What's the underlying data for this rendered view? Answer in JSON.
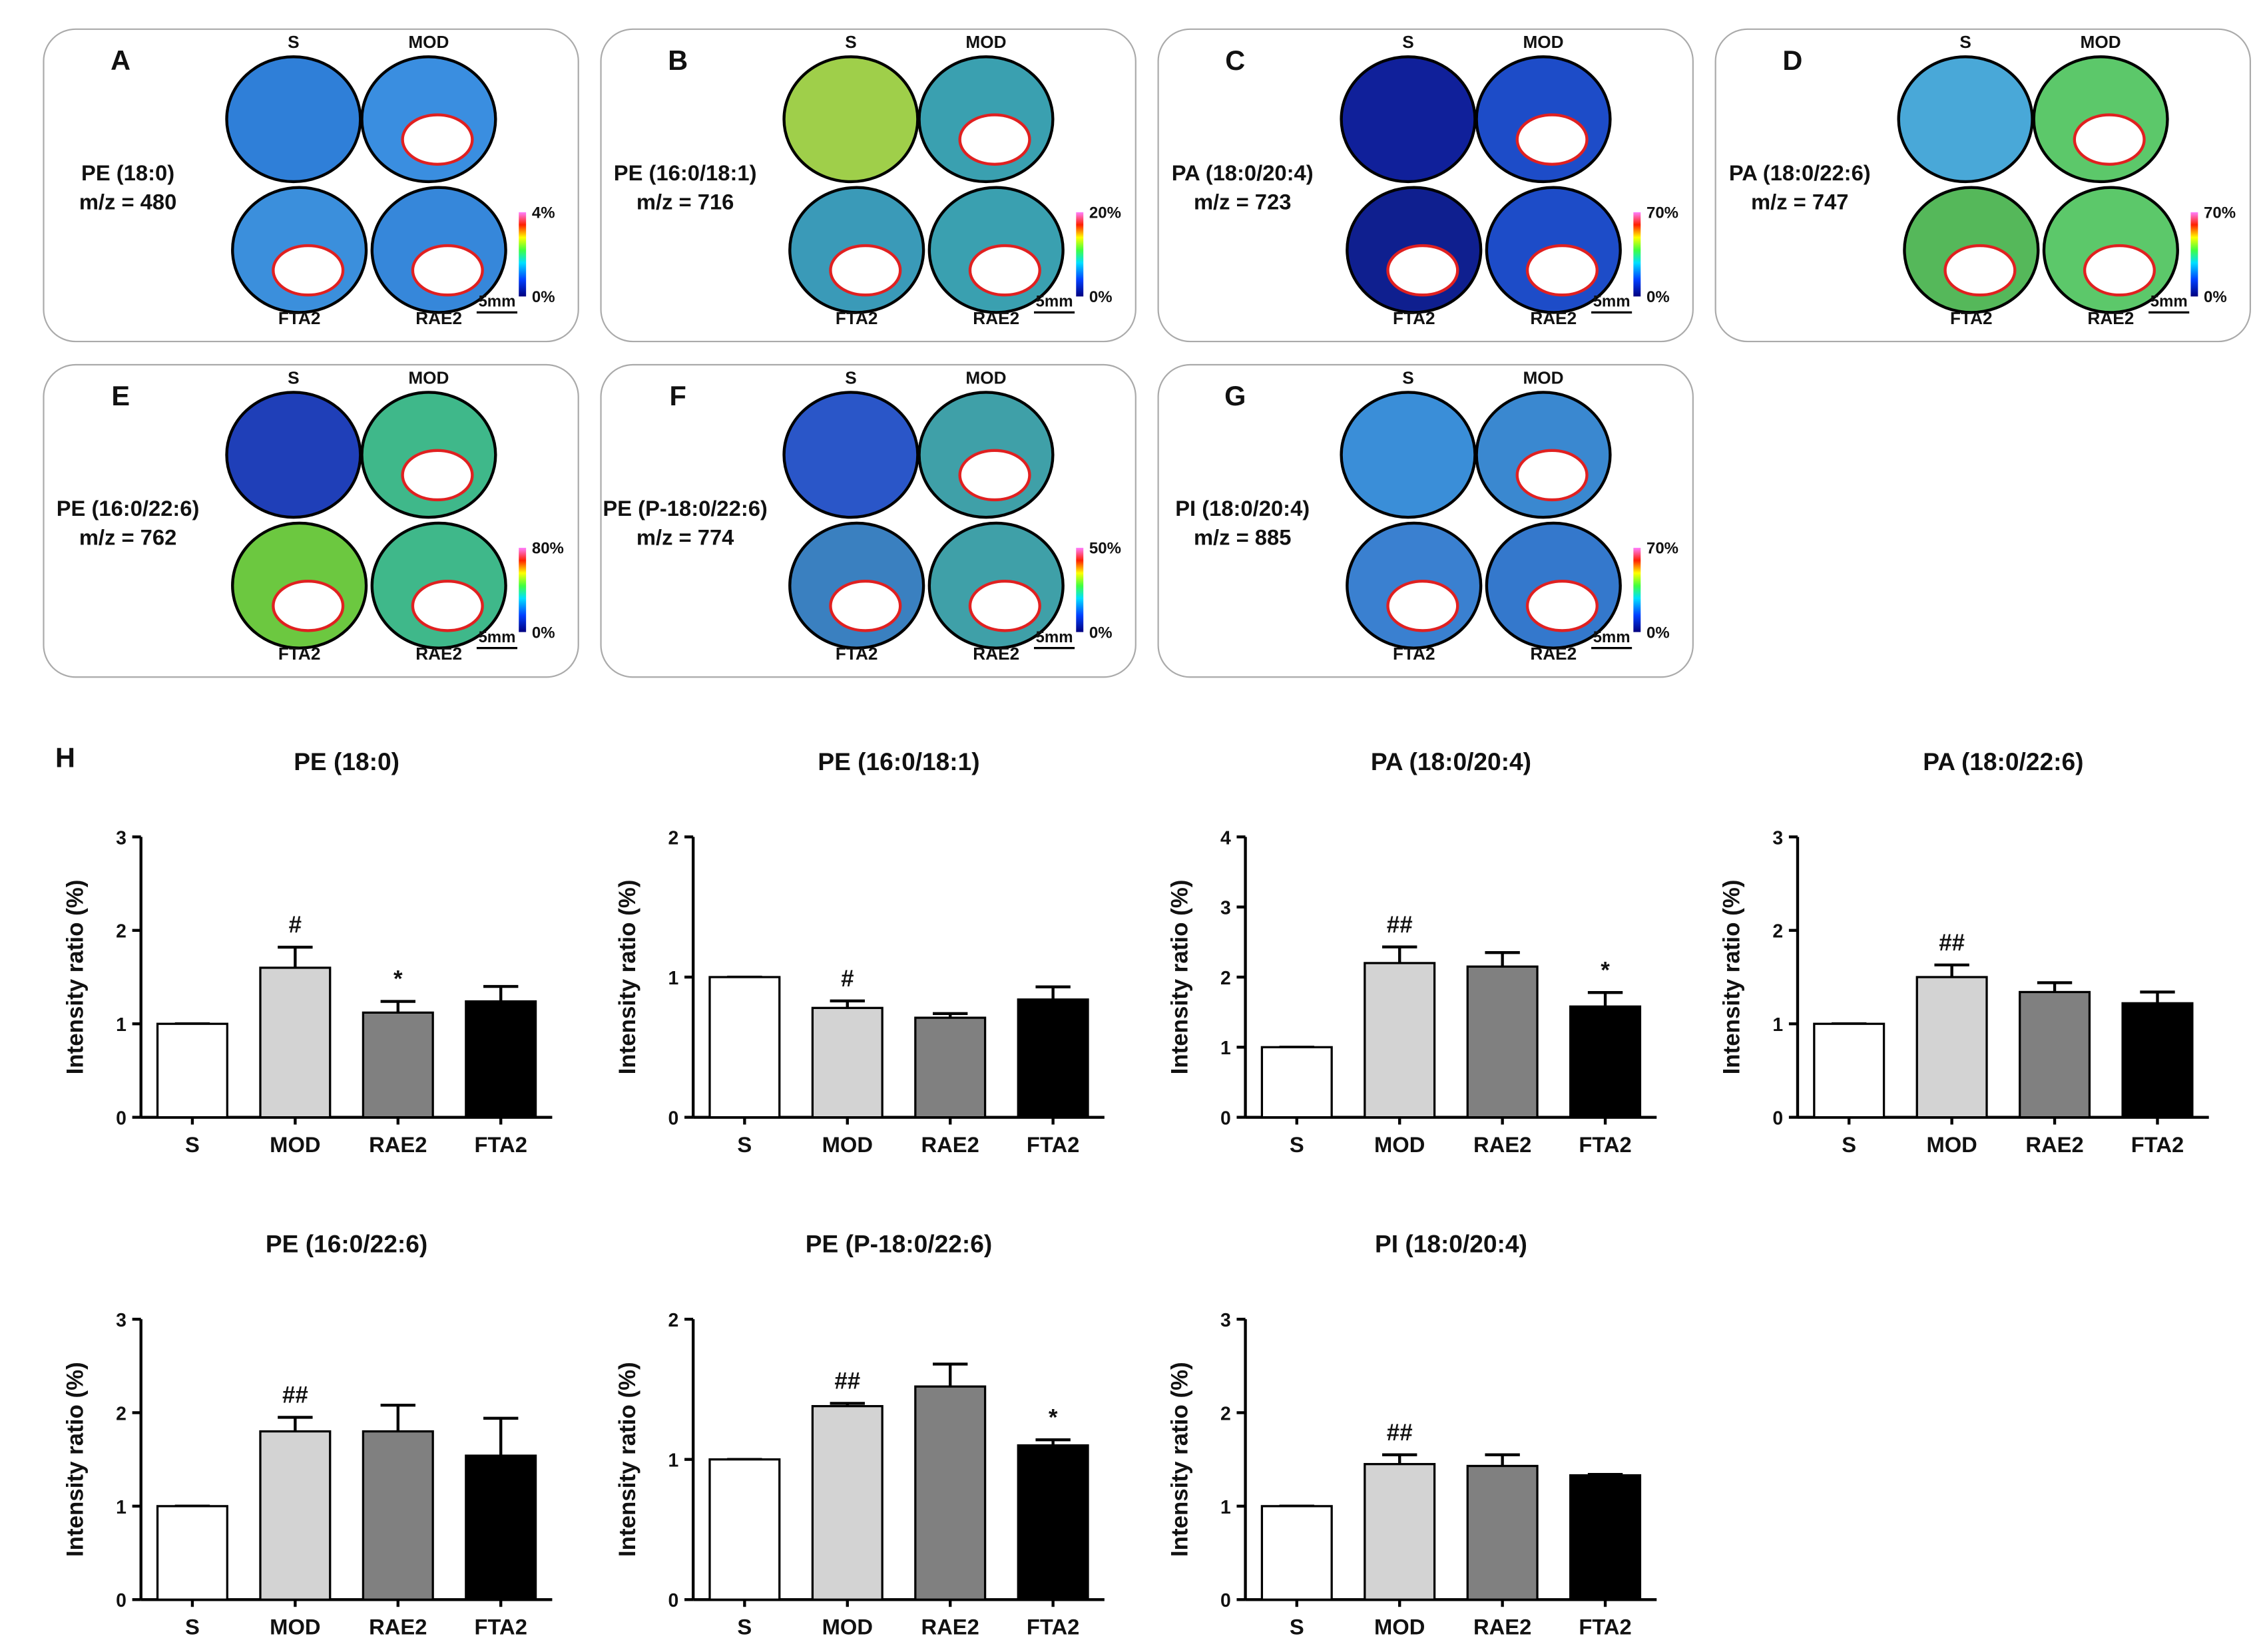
{
  "figure_label": "H",
  "image_panels": [
    {
      "letter": "A",
      "compound": "PE (18:0)",
      "mz": "m/z = 480",
      "labels": [
        "S",
        "MOD",
        "FTA2",
        "RAE2"
      ],
      "scale_max": "4%",
      "scale_min": "0%",
      "scale_bar": "5mm",
      "tissue_colors": [
        "#2f7fd8",
        "#3a8ee0",
        "#3b8fdc",
        "#3687da"
      ]
    },
    {
      "letter": "B",
      "compound": "PE (16:0/18:1)",
      "mz": "m/z = 716",
      "labels": [
        "S",
        "MOD",
        "FTA2",
        "RAE2"
      ],
      "scale_max": "20%",
      "scale_min": "0%",
      "scale_bar": "5mm",
      "tissue_colors": [
        "#9fcf4a",
        "#3aa0b0",
        "#3a9ab8",
        "#3aa0b0"
      ]
    },
    {
      "letter": "C",
      "compound": "PA (18:0/20:4)",
      "mz": "m/z = 723",
      "labels": [
        "S",
        "MOD",
        "FTA2",
        "RAE2"
      ],
      "scale_max": "70%",
      "scale_min": "0%",
      "scale_bar": "5mm",
      "tissue_colors": [
        "#10209a",
        "#1d4cc8",
        "#0f1f8f",
        "#1d4cc8"
      ]
    },
    {
      "letter": "D",
      "compound": "PA (18:0/22:6)",
      "mz": "m/z = 747",
      "labels": [
        "S",
        "MOD",
        "FTA2",
        "RAE2"
      ],
      "scale_max": "70%",
      "scale_min": "0%",
      "scale_bar": "5mm",
      "tissue_colors": [
        "#49a8d8",
        "#5cc86a",
        "#55b85a",
        "#5cc86a"
      ]
    },
    {
      "letter": "E",
      "compound": "PE (16:0/22:6)",
      "mz": "m/z = 762",
      "labels": [
        "S",
        "MOD",
        "FTA2",
        "RAE2"
      ],
      "scale_max": "80%",
      "scale_min": "0%",
      "scale_bar": "5mm",
      "tissue_colors": [
        "#1f3fb8",
        "#3fb88a",
        "#6cc840",
        "#3fb88a"
      ]
    },
    {
      "letter": "F",
      "compound": "PE (P-18:0/22:6)",
      "mz": "m/z = 774",
      "labels": [
        "S",
        "MOD",
        "FTA2",
        "RAE2"
      ],
      "scale_max": "50%",
      "scale_min": "0%",
      "scale_bar": "5mm",
      "tissue_colors": [
        "#2a56c8",
        "#3fa0a8",
        "#3a80c0",
        "#3fa0a8"
      ]
    },
    {
      "letter": "G",
      "compound": "PI (18:0/20:4)",
      "mz": "m/z = 885",
      "labels": [
        "S",
        "MOD",
        "FTA2",
        "RAE2"
      ],
      "scale_max": "70%",
      "scale_min": "0%",
      "scale_bar": "5mm",
      "tissue_colors": [
        "#3a8ed8",
        "#3a88d0",
        "#3a80d0",
        "#3478cc"
      ]
    }
  ],
  "chart_data": [
    {
      "type": "bar",
      "title": "PE (18:0)",
      "ylabel": "Intensity ratio (%)",
      "categories": [
        "S",
        "MOD",
        "RAE2",
        "FTA2"
      ],
      "values": [
        1,
        1.6,
        1.12,
        1.24
      ],
      "errors": [
        0,
        0.22,
        0.12,
        0.16
      ],
      "annotations": [
        null,
        "#",
        "*",
        null
      ],
      "colors": [
        "#ffffff",
        "#d3d3d3",
        "#808080",
        "#000000"
      ],
      "ylim": [
        0,
        3
      ],
      "yticks": [
        0,
        1,
        2,
        3
      ]
    },
    {
      "type": "bar",
      "title": "PE (16:0/18:1)",
      "ylabel": "Intensity ratio (%)",
      "categories": [
        "S",
        "MOD",
        "RAE2",
        "FTA2"
      ],
      "values": [
        1,
        0.78,
        0.71,
        0.84
      ],
      "errors": [
        0,
        0.05,
        0.03,
        0.09
      ],
      "annotations": [
        null,
        "#",
        null,
        null
      ],
      "colors": [
        "#ffffff",
        "#d3d3d3",
        "#808080",
        "#000000"
      ],
      "ylim": [
        0,
        2
      ],
      "yticks": [
        0,
        1,
        2
      ]
    },
    {
      "type": "bar",
      "title": "PA (18:0/20:4)",
      "ylabel": "Intensity ratio (%)",
      "categories": [
        "S",
        "MOD",
        "RAE2",
        "FTA2"
      ],
      "values": [
        1,
        2.2,
        2.15,
        1.58
      ],
      "errors": [
        0,
        0.23,
        0.2,
        0.2
      ],
      "annotations": [
        null,
        "##",
        null,
        "*"
      ],
      "colors": [
        "#ffffff",
        "#d3d3d3",
        "#808080",
        "#000000"
      ],
      "ylim": [
        0,
        4
      ],
      "yticks": [
        0,
        1,
        2,
        3,
        4
      ]
    },
    {
      "type": "bar",
      "title": "PA (18:0/22:6)",
      "ylabel": "Intensity ratio (%)",
      "categories": [
        "S",
        "MOD",
        "RAE2",
        "FTA2"
      ],
      "values": [
        1,
        1.5,
        1.34,
        1.22
      ],
      "errors": [
        0,
        0.13,
        0.1,
        0.12
      ],
      "annotations": [
        null,
        "##",
        null,
        null
      ],
      "colors": [
        "#ffffff",
        "#d3d3d3",
        "#808080",
        "#000000"
      ],
      "ylim": [
        0,
        3
      ],
      "yticks": [
        0,
        1,
        2,
        3
      ]
    },
    {
      "type": "bar",
      "title": "PE (16:0/22:6)",
      "ylabel": "Intensity ratio (%)",
      "categories": [
        "S",
        "MOD",
        "RAE2",
        "FTA2"
      ],
      "values": [
        1,
        1.8,
        1.8,
        1.54
      ],
      "errors": [
        0,
        0.15,
        0.28,
        0.4
      ],
      "annotations": [
        null,
        "##",
        null,
        null
      ],
      "colors": [
        "#ffffff",
        "#d3d3d3",
        "#808080",
        "#000000"
      ],
      "ylim": [
        0,
        3
      ],
      "yticks": [
        0,
        1,
        2,
        3
      ]
    },
    {
      "type": "bar",
      "title": "PE (P-18:0/22:6)",
      "ylabel": "Intensity ratio (%)",
      "categories": [
        "S",
        "MOD",
        "RAE2",
        "FTA2"
      ],
      "values": [
        1,
        1.38,
        1.52,
        1.1
      ],
      "errors": [
        0,
        0.02,
        0.16,
        0.04
      ],
      "annotations": [
        null,
        "##",
        null,
        "*"
      ],
      "colors": [
        "#ffffff",
        "#d3d3d3",
        "#808080",
        "#000000"
      ],
      "ylim": [
        0,
        2
      ],
      "yticks": [
        0,
        1,
        2
      ]
    },
    {
      "type": "bar",
      "title": "PI (18:0/20:4)",
      "ylabel": "Intensity ratio (%)",
      "categories": [
        "S",
        "MOD",
        "RAE2",
        "FTA2"
      ],
      "values": [
        1,
        1.45,
        1.43,
        1.33
      ],
      "errors": [
        0,
        0.1,
        0.12,
        0.01
      ],
      "annotations": [
        null,
        "##",
        null,
        null
      ],
      "colors": [
        "#ffffff",
        "#d3d3d3",
        "#808080",
        "#000000"
      ],
      "ylim": [
        0,
        3
      ],
      "yticks": [
        0,
        1,
        2,
        3
      ]
    }
  ]
}
